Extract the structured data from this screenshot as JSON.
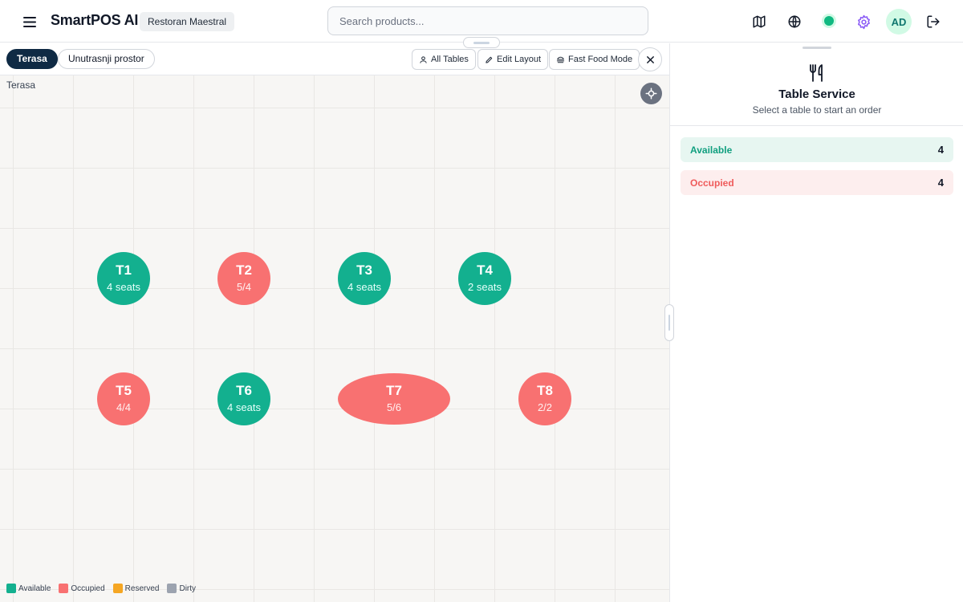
{
  "header": {
    "app_title": "SmartPOS AI",
    "restaurant": "Restoran Maestral",
    "search_placeholder": "Search products...",
    "avatar_initials": "AD",
    "icons": [
      "menu-icon",
      "map-icon",
      "globe-icon",
      "status-online-icon",
      "gear-icon",
      "logout-icon"
    ]
  },
  "floor": {
    "tabs": [
      {
        "label": "Terasa",
        "active": true
      },
      {
        "label": "Unutrasnji prostor",
        "active": false
      }
    ],
    "toolbar": {
      "all_tables": "All Tables",
      "edit_layout": "Edit Layout",
      "fast_food_mode": "Fast Food Mode"
    },
    "current_floor_label": "Terasa",
    "tables": [
      {
        "name": "T1",
        "info": "4 seats",
        "status": "available"
      },
      {
        "name": "T2",
        "info": "5/4",
        "status": "occupied"
      },
      {
        "name": "T3",
        "info": "4 seats",
        "status": "available"
      },
      {
        "name": "T4",
        "info": "2 seats",
        "status": "available"
      },
      {
        "name": "T5",
        "info": "4/4",
        "status": "occupied"
      },
      {
        "name": "T6",
        "info": "4 seats",
        "status": "available"
      },
      {
        "name": "T7",
        "info": "5/6",
        "status": "occupied"
      },
      {
        "name": "T8",
        "info": "2/2",
        "status": "occupied"
      }
    ],
    "legend": [
      {
        "label": "Available",
        "color": "#13b08f"
      },
      {
        "label": "Occupied",
        "color": "#f87171"
      },
      {
        "label": "Reserved",
        "color": "#f5a623"
      },
      {
        "label": "Dirty",
        "color": "#9ca3af"
      }
    ]
  },
  "panel": {
    "title": "Table Service",
    "subtitle": "Select a table to start an order",
    "stats": [
      {
        "label": "Available",
        "count": "4"
      },
      {
        "label": "Occupied",
        "count": "4"
      }
    ]
  }
}
